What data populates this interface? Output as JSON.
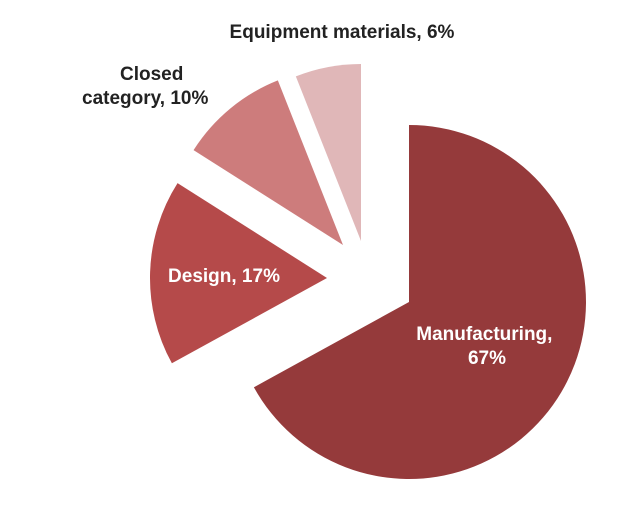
{
  "chart_data": {
    "type": "pie",
    "title": "",
    "slices": [
      {
        "label": "Manufacturing",
        "value": 67,
        "display": [
          "Manufacturing,",
          "67%"
        ],
        "color": "#953a3b"
      },
      {
        "label": "Design",
        "value": 17,
        "display": [
          "Design, 17%"
        ],
        "color": "#b54a4a"
      },
      {
        "label": "Closed category",
        "value": 10,
        "display": [
          "Closed",
          "category, 10%"
        ],
        "color": "#cd7c7c"
      },
      {
        "label": "Equipment materials",
        "value": 6,
        "display": [
          "Equipment materials, 6%"
        ],
        "color": "#e0b7b8"
      }
    ],
    "start_angle_deg": 0,
    "direction": "clockwise",
    "exploded": true,
    "legend": "none"
  }
}
